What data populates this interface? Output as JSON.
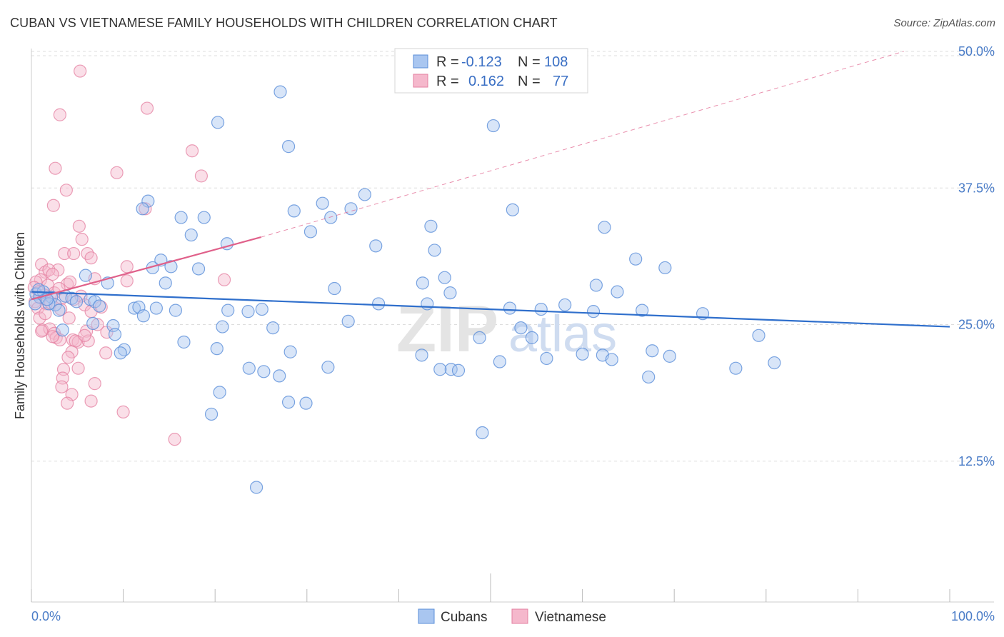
{
  "title": "CUBAN VS VIETNAMESE FAMILY HOUSEHOLDS WITH CHILDREN CORRELATION CHART",
  "source": "Source: ZipAtlas.com",
  "watermark": {
    "part1": "ZIP",
    "part2": "atlas"
  },
  "colors": {
    "cuban_fill": "#a9c6f0",
    "cuban_stroke": "#5b8fd9",
    "cuban_line": "#2f6fcc",
    "viet_fill": "#f5b8cc",
    "viet_stroke": "#e47fa0",
    "viet_line": "#e0608a",
    "grid": "#dddddd",
    "tick_text": "#4a7cc7"
  },
  "legend": {
    "row1": {
      "r_label": "R = ",
      "r_value": "-0.123",
      "n_label": "N = ",
      "n_value": "108"
    },
    "row2": {
      "r_label": "R = ",
      "r_value": "0.162",
      "n_label": "N = ",
      "n_value": "77"
    }
  },
  "chart_data": {
    "type": "scatter",
    "xlabel": "",
    "ylabel": "Family Households with Children",
    "xlim": [
      0,
      100
    ],
    "ylim": [
      0,
      50
    ],
    "x_tick_labels": [
      "0.0%",
      "100.0%"
    ],
    "y_ticks": [
      12.5,
      25.0,
      37.5,
      50.0
    ],
    "y_tick_labels": [
      "12.5%",
      "25.0%",
      "37.5%",
      "50.0%"
    ],
    "grid": "horizontal dashed",
    "legend_position": "top-center",
    "series": [
      {
        "name": "Cubans",
        "trend": {
          "x0": 0,
          "y0": 28.0,
          "x1": 100,
          "y1": 24.8
        },
        "points": [
          [
            27.1,
            46.3
          ],
          [
            20.3,
            43.5
          ],
          [
            50.3,
            43.2
          ],
          [
            28.0,
            41.3
          ],
          [
            36.3,
            36.9
          ],
          [
            12.7,
            36.3
          ],
          [
            31.7,
            36.1
          ],
          [
            12.1,
            35.6
          ],
          [
            52.4,
            35.5
          ],
          [
            28.6,
            35.4
          ],
          [
            34.8,
            35.6
          ],
          [
            16.3,
            34.8
          ],
          [
            18.8,
            34.8
          ],
          [
            32.6,
            34.8
          ],
          [
            43.5,
            34.0
          ],
          [
            62.4,
            33.9
          ],
          [
            30.4,
            33.5
          ],
          [
            17.4,
            33.2
          ],
          [
            21.3,
            32.4
          ],
          [
            37.5,
            32.2
          ],
          [
            43.9,
            31.8
          ],
          [
            14.1,
            30.9
          ],
          [
            65.8,
            31.0
          ],
          [
            15.2,
            30.3
          ],
          [
            13.2,
            30.2
          ],
          [
            18.2,
            30.1
          ],
          [
            69.0,
            30.2
          ],
          [
            5.9,
            29.5
          ],
          [
            45.0,
            29.3
          ],
          [
            8.3,
            28.8
          ],
          [
            14.6,
            28.8
          ],
          [
            42.6,
            28.8
          ],
          [
            61.5,
            28.6
          ],
          [
            33.0,
            28.3
          ],
          [
            63.8,
            28.0
          ],
          [
            45.6,
            27.9
          ],
          [
            0.5,
            27.8
          ],
          [
            0.9,
            27.5
          ],
          [
            1.3,
            28.0
          ],
          [
            2.2,
            27.5
          ],
          [
            3.7,
            27.6
          ],
          [
            4.4,
            27.4
          ],
          [
            6.4,
            27.3
          ],
          [
            2.6,
            26.8
          ],
          [
            4.9,
            27.1
          ],
          [
            1.9,
            26.9
          ],
          [
            6.9,
            27.1
          ],
          [
            7.4,
            26.7
          ],
          [
            11.2,
            26.5
          ],
          [
            13.6,
            26.5
          ],
          [
            11.7,
            26.6
          ],
          [
            25.1,
            26.4
          ],
          [
            21.4,
            26.3
          ],
          [
            23.6,
            26.2
          ],
          [
            37.8,
            26.9
          ],
          [
            43.1,
            26.9
          ],
          [
            58.1,
            26.8
          ],
          [
            52.1,
            26.5
          ],
          [
            55.5,
            26.4
          ],
          [
            61.2,
            26.2
          ],
          [
            66.5,
            26.3
          ],
          [
            3.0,
            26.3
          ],
          [
            15.7,
            26.3
          ],
          [
            12.2,
            25.8
          ],
          [
            73.1,
            26.0
          ],
          [
            34.5,
            25.3
          ],
          [
            6.7,
            25.1
          ],
          [
            20.8,
            24.8
          ],
          [
            8.9,
            24.9
          ],
          [
            26.3,
            24.7
          ],
          [
            53.3,
            24.7
          ],
          [
            3.4,
            24.5
          ],
          [
            9.1,
            24.1
          ],
          [
            48.8,
            23.8
          ],
          [
            54.5,
            23.8
          ],
          [
            16.6,
            23.4
          ],
          [
            79.2,
            24.0
          ],
          [
            20.2,
            22.8
          ],
          [
            10.1,
            22.7
          ],
          [
            9.7,
            22.4
          ],
          [
            28.2,
            22.5
          ],
          [
            60.0,
            22.3
          ],
          [
            67.6,
            22.6
          ],
          [
            42.5,
            22.2
          ],
          [
            62.2,
            22.2
          ],
          [
            69.5,
            22.1
          ],
          [
            56.1,
            21.9
          ],
          [
            51.0,
            21.6
          ],
          [
            63.2,
            21.8
          ],
          [
            23.7,
            21.0
          ],
          [
            32.3,
            21.1
          ],
          [
            45.7,
            20.9
          ],
          [
            80.9,
            21.5
          ],
          [
            76.7,
            21.0
          ],
          [
            46.5,
            20.8
          ],
          [
            44.5,
            20.9
          ],
          [
            25.3,
            20.7
          ],
          [
            27.0,
            20.3
          ],
          [
            67.2,
            20.2
          ],
          [
            20.5,
            18.8
          ],
          [
            28.0,
            17.9
          ],
          [
            29.9,
            17.8
          ],
          [
            19.6,
            16.8
          ],
          [
            49.1,
            15.1
          ],
          [
            24.5,
            10.1
          ],
          [
            0.8,
            28.2
          ],
          [
            1.7,
            27.3
          ],
          [
            0.4,
            26.9
          ]
        ]
      },
      {
        "name": "Vietnamese",
        "trend": {
          "x0": 0,
          "y0": 27.3,
          "x1": 25,
          "y1": 33.0
        },
        "trend_extension": {
          "x0": 25,
          "y0": 33.0,
          "x1": 95,
          "y1": 50.0
        },
        "points": [
          [
            5.3,
            48.2
          ],
          [
            12.6,
            44.8
          ],
          [
            3.1,
            44.2
          ],
          [
            17.5,
            40.9
          ],
          [
            2.6,
            39.3
          ],
          [
            9.3,
            38.9
          ],
          [
            18.5,
            38.6
          ],
          [
            3.8,
            37.3
          ],
          [
            2.4,
            35.9
          ],
          [
            12.4,
            35.6
          ],
          [
            5.2,
            34.0
          ],
          [
            5.5,
            32.8
          ],
          [
            3.6,
            31.5
          ],
          [
            4.6,
            31.5
          ],
          [
            6.1,
            31.5
          ],
          [
            6.5,
            31.1
          ],
          [
            1.1,
            30.5
          ],
          [
            10.4,
            30.3
          ],
          [
            1.5,
            29.8
          ],
          [
            2.9,
            30.0
          ],
          [
            1.9,
            30.0
          ],
          [
            2.3,
            29.6
          ],
          [
            6.9,
            29.2
          ],
          [
            1.0,
            29.1
          ],
          [
            0.5,
            28.9
          ],
          [
            3.9,
            28.7
          ],
          [
            4.2,
            28.9
          ],
          [
            10.4,
            29.0
          ],
          [
            21.0,
            29.1
          ],
          [
            0.3,
            28.4
          ],
          [
            1.8,
            28.6
          ],
          [
            0.8,
            28.0
          ],
          [
            2.5,
            27.9
          ],
          [
            1.4,
            27.7
          ],
          [
            3.3,
            27.4
          ],
          [
            4.6,
            27.3
          ],
          [
            5.4,
            27.6
          ],
          [
            0.4,
            27.1
          ],
          [
            1.6,
            26.9
          ],
          [
            2.1,
            27.0
          ],
          [
            5.8,
            26.8
          ],
          [
            0.7,
            26.5
          ],
          [
            3.2,
            26.4
          ],
          [
            6.5,
            26.2
          ],
          [
            7.6,
            26.6
          ],
          [
            4.1,
            25.6
          ],
          [
            1.2,
            24.5
          ],
          [
            2.0,
            24.6
          ],
          [
            2.5,
            24.2
          ],
          [
            1.1,
            24.4
          ],
          [
            6.0,
            24.4
          ],
          [
            8.2,
            24.3
          ],
          [
            2.7,
            23.8
          ],
          [
            4.5,
            23.6
          ],
          [
            5.1,
            23.4
          ],
          [
            6.2,
            23.5
          ],
          [
            4.8,
            23.5
          ],
          [
            3.1,
            23.6
          ],
          [
            5.8,
            24.0
          ],
          [
            4.4,
            22.5
          ],
          [
            8.1,
            22.4
          ],
          [
            3.5,
            20.9
          ],
          [
            5.1,
            21.0
          ],
          [
            3.4,
            20.1
          ],
          [
            3.3,
            19.3
          ],
          [
            6.9,
            19.6
          ],
          [
            4.4,
            18.6
          ],
          [
            3.9,
            17.8
          ],
          [
            6.5,
            18.0
          ],
          [
            10.0,
            17.0
          ],
          [
            15.6,
            14.5
          ],
          [
            0.9,
            25.6
          ],
          [
            1.5,
            26.0
          ],
          [
            3.0,
            28.3
          ],
          [
            7.2,
            25.0
          ],
          [
            2.3,
            23.9
          ],
          [
            4.0,
            22.0
          ]
        ]
      }
    ]
  },
  "bottom_legend": {
    "cuban_label": "Cubans",
    "viet_label": "Vietnamese"
  }
}
